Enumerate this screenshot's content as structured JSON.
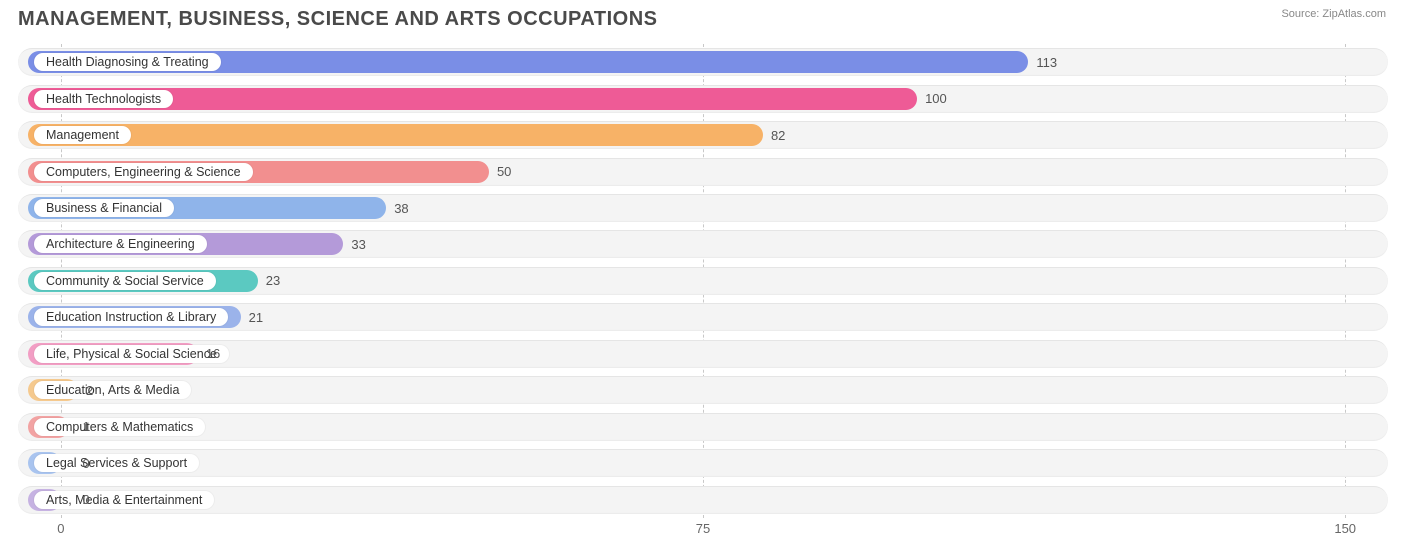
{
  "title": "MANAGEMENT, BUSINESS, SCIENCE AND ARTS OCCUPATIONS",
  "source": "Source: ZipAtlas.com",
  "chart": {
    "type": "bar-horizontal",
    "x_axis": {
      "min": -5,
      "max": 155,
      "ticks": [
        0,
        75,
        150
      ],
      "zero_at": 0
    },
    "track_color": "#f4f4f4",
    "grid_color": "#c8c8c8",
    "background_color": "#ffffff",
    "title_fontsize": 20,
    "label_fontsize": 12.5,
    "value_fontsize": 13,
    "bars": [
      {
        "label": "Health Diagnosing & Treating",
        "value": 113,
        "color": "#7a8ee6"
      },
      {
        "label": "Health Technologists",
        "value": 100,
        "color": "#ee5b96"
      },
      {
        "label": "Management",
        "value": 82,
        "color": "#f7b267"
      },
      {
        "label": "Computers, Engineering & Science",
        "value": 50,
        "color": "#f28f8f"
      },
      {
        "label": "Business & Financial",
        "value": 38,
        "color": "#8fb4ea"
      },
      {
        "label": "Architecture & Engineering",
        "value": 33,
        "color": "#b49ad9"
      },
      {
        "label": "Community & Social Service",
        "value": 23,
        "color": "#5bc9c1"
      },
      {
        "label": "Education Instruction & Library",
        "value": 21,
        "color": "#9bb3ea"
      },
      {
        "label": "Life, Physical & Social Science",
        "value": 16,
        "color": "#f29ec4"
      },
      {
        "label": "Education, Arts & Media",
        "value": 2,
        "color": "#f5c98e"
      },
      {
        "label": "Computers & Mathematics",
        "value": 1,
        "color": "#f2a3a3"
      },
      {
        "label": "Legal Services & Support",
        "value": 0,
        "color": "#a9c4ef"
      },
      {
        "label": "Arts, Media & Entertainment",
        "value": 0,
        "color": "#c6b2e2"
      }
    ]
  }
}
